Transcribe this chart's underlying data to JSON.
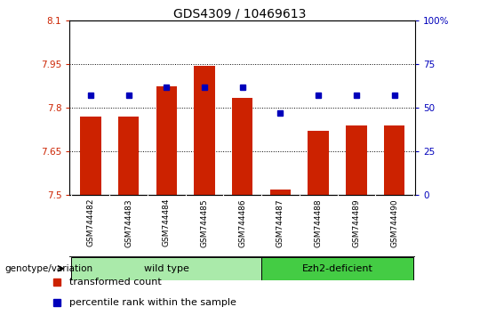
{
  "title": "GDS4309 / 10469613",
  "samples": [
    "GSM744482",
    "GSM744483",
    "GSM744484",
    "GSM744485",
    "GSM744486",
    "GSM744487",
    "GSM744488",
    "GSM744489",
    "GSM744490"
  ],
  "transformed_count": [
    7.77,
    7.77,
    7.875,
    7.945,
    7.835,
    7.52,
    7.72,
    7.74,
    7.74
  ],
  "percentile_rank": [
    57,
    57,
    62,
    62,
    62,
    47,
    57,
    57,
    57
  ],
  "ylim_left": [
    7.5,
    8.1
  ],
  "ylim_right": [
    0,
    100
  ],
  "yticks_left": [
    7.5,
    7.65,
    7.8,
    7.95,
    8.1
  ],
  "yticks_right": [
    0,
    25,
    50,
    75,
    100
  ],
  "ytick_labels_left": [
    "7.5",
    "7.65",
    "7.8",
    "7.95",
    "8.1"
  ],
  "ytick_labels_right": [
    "0",
    "25",
    "50",
    "75",
    "100%"
  ],
  "bar_color": "#cc2200",
  "dot_color": "#0000bb",
  "groups": [
    {
      "label": "wild type",
      "indices": [
        0,
        1,
        2,
        3,
        4
      ],
      "color_light": "#ccffcc",
      "color_dark": "#55cc55"
    },
    {
      "label": "Ezh2-deficient",
      "indices": [
        5,
        6,
        7,
        8
      ],
      "color_light": "#44dd44",
      "color_dark": "#22aa22"
    }
  ],
  "group_label_prefix": "genotype/variation",
  "legend_bar_label": "transformed count",
  "legend_dot_label": "percentile rank within the sample",
  "left_tick_color": "#cc2200",
  "right_tick_color": "#0000bb",
  "xtick_bg_color": "#cccccc",
  "wild_type_color": "#aaeaaa",
  "ezh2_color": "#44cc44"
}
